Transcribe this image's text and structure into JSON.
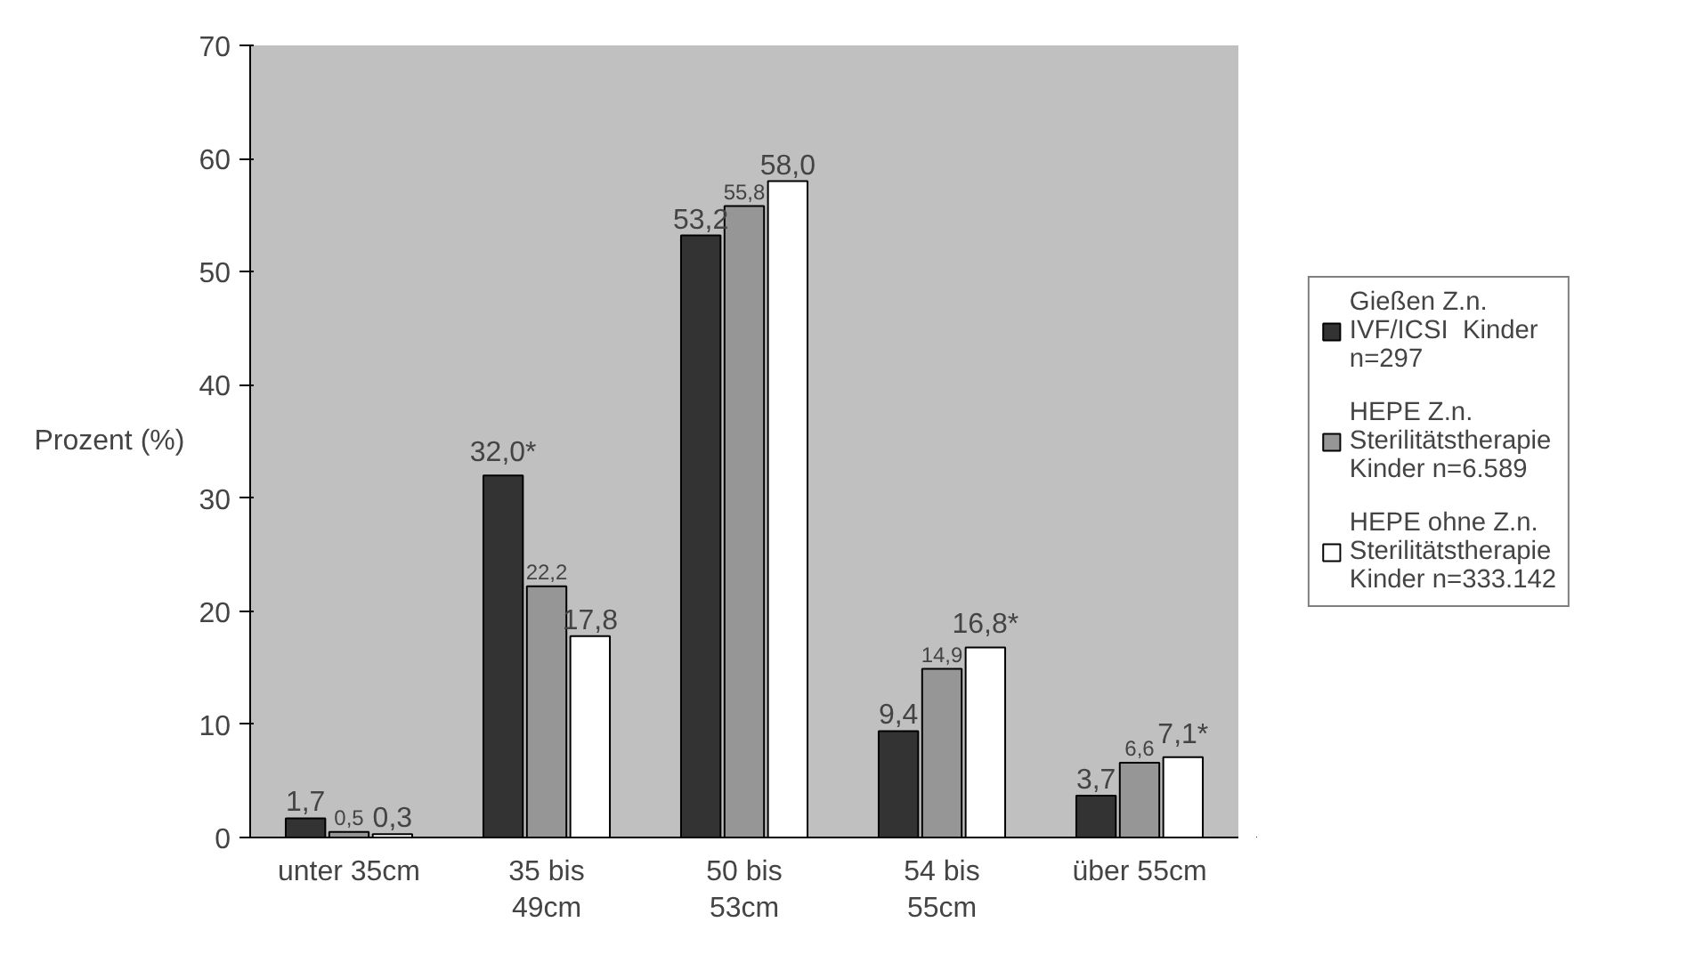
{
  "chart_data": {
    "type": "bar",
    "ylabel": "Prozent (%)",
    "categories": [
      "unter 35cm",
      "35 bis\n49cm",
      "50 bis\n53cm",
      "54 bis\n55cm",
      "über 55cm"
    ],
    "series": [
      {
        "name": "Gießen Z.n.\nIVF/ICSI  Kinder\nn=297",
        "color": "#333333",
        "values": [
          1.7,
          32.0,
          53.2,
          9.4,
          3.7
        ],
        "value_labels": [
          "1,7",
          "32,0*",
          "53,2",
          "9,4",
          "3,7"
        ]
      },
      {
        "name": "HEPE Z.n.\nSterilitätstherapie\nKinder n=6.589",
        "color": "#969696",
        "values": [
          0.5,
          22.2,
          55.8,
          14.9,
          6.6
        ],
        "value_labels": [
          "0,5",
          "22,2",
          "55,8",
          "14,9",
          "6,6"
        ]
      },
      {
        "name": "HEPE ohne Z.n.\nSterilitätstherapie\nKinder n=333.142",
        "color": "#ffffff",
        "values": [
          0.3,
          17.8,
          58.0,
          16.8,
          7.1
        ],
        "value_labels": [
          "0,3",
          "17,8",
          "58,0",
          "16,8*",
          "7,1*"
        ]
      }
    ],
    "ylim": [
      0,
      70
    ],
    "yticks": [
      0,
      10,
      20,
      30,
      40,
      50,
      60,
      70
    ],
    "grid": false,
    "legend": "right"
  }
}
